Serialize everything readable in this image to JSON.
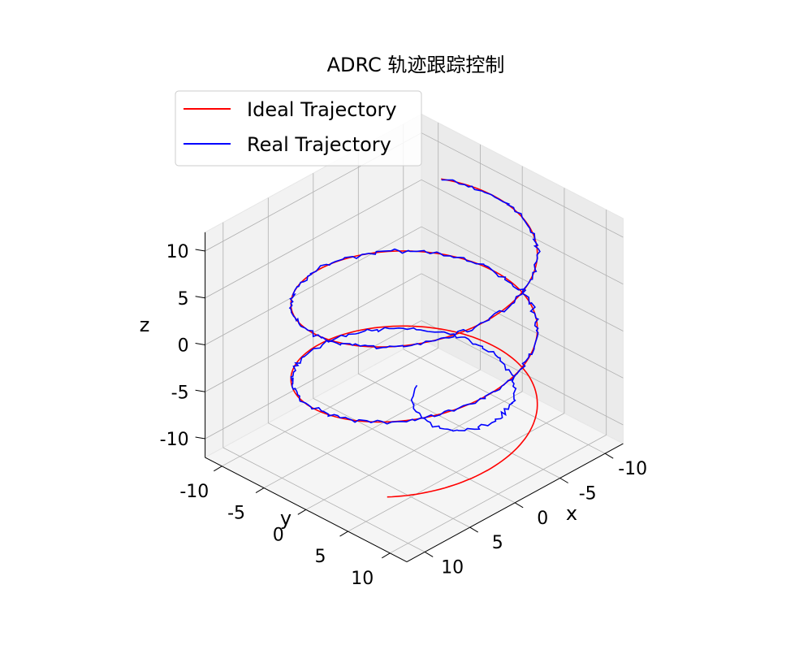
{
  "chart_data": {
    "type": "line",
    "projection": "3d",
    "title": "ADRC 轨迹跟踪控制",
    "xlabel": "x",
    "ylabel": "y",
    "zlabel": "z",
    "xlim": [
      -12,
      12
    ],
    "ylim": [
      -12,
      12
    ],
    "zlim": [
      -12,
      12
    ],
    "xticks": [
      -10,
      -5,
      0,
      5,
      10
    ],
    "yticks": [
      -10,
      -5,
      0,
      5,
      10
    ],
    "zticks": [
      -10,
      -5,
      0,
      5,
      10
    ],
    "grid": true,
    "legend": "top-left",
    "series": [
      {
        "name": "Ideal Trajectory",
        "color": "#ff0000",
        "style": "helix",
        "radius": 10,
        "z_start": -10,
        "z_end": 10,
        "turns": 2.5
      },
      {
        "name": "Real Trajectory",
        "color": "#0000ff",
        "style": "tracked",
        "noise": 0.35,
        "start_point": [
          0,
          0,
          -5
        ]
      }
    ]
  }
}
